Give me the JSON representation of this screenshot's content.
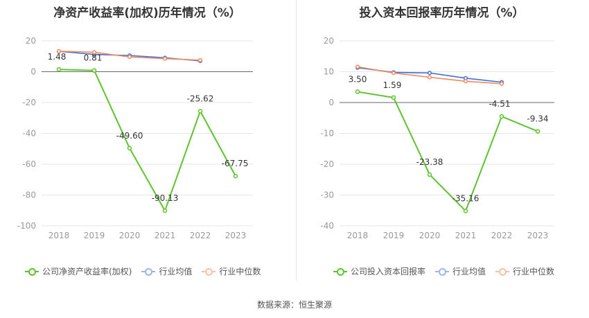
{
  "source_label": "数据来源：恒生聚源",
  "colors": {
    "company": "#5ec32b",
    "industry_avg": "#3f6fd8",
    "industry_median": "#f08a5d",
    "grid": "#e6e6e6",
    "axis": "#999999",
    "text": "#999999",
    "label": "#333333"
  },
  "chart_data": [
    {
      "type": "line",
      "title": "净资产收益率(加权)历年情况（%）",
      "x": [
        "2018",
        "2019",
        "2020",
        "2021",
        "2022",
        "2023"
      ],
      "ylim": [
        -100,
        20
      ],
      "yticks": [
        20,
        0,
        -20,
        -40,
        -60,
        -80,
        -100
      ],
      "legend_position": "bottom-left",
      "series": [
        {
          "name": "公司净资产收益率(加权)",
          "key": "company",
          "values": [
            1.48,
            0.81,
            -49.6,
            -90.13,
            -25.62,
            -67.75
          ],
          "labels": [
            "1.48",
            "0.81",
            "-49.60",
            "-90.13",
            "-25.62",
            "-67.75"
          ]
        },
        {
          "name": "行业均值",
          "key": "industry_avg",
          "values": [
            13.2,
            11.2,
            10.5,
            9.0,
            7.0,
            null
          ]
        },
        {
          "name": "行业中位数",
          "key": "industry_median",
          "values": [
            13.3,
            12.6,
            9.6,
            8.5,
            7.5,
            null
          ]
        }
      ]
    },
    {
      "type": "line",
      "title": "投入资本回报率历年情况（%）",
      "x": [
        "2018",
        "2019",
        "2020",
        "2021",
        "2022",
        "2023"
      ],
      "ylim": [
        -40,
        20
      ],
      "yticks": [
        20,
        10,
        0,
        -10,
        -20,
        -30,
        -40
      ],
      "legend_position": "bottom-left",
      "series": [
        {
          "name": "公司投入资本回报率",
          "key": "company",
          "values": [
            3.5,
            1.59,
            -23.38,
            -35.16,
            -4.51,
            -9.34
          ],
          "labels": [
            "3.50",
            "1.59",
            "-23.38",
            "-35.16",
            "-4.51",
            "-9.34"
          ]
        },
        {
          "name": "行业均值",
          "key": "industry_avg",
          "values": [
            11.3,
            9.8,
            9.6,
            7.9,
            6.6,
            null
          ]
        },
        {
          "name": "行业中位数",
          "key": "industry_median",
          "values": [
            11.6,
            9.6,
            8.2,
            6.9,
            6.1,
            null
          ]
        }
      ]
    }
  ]
}
